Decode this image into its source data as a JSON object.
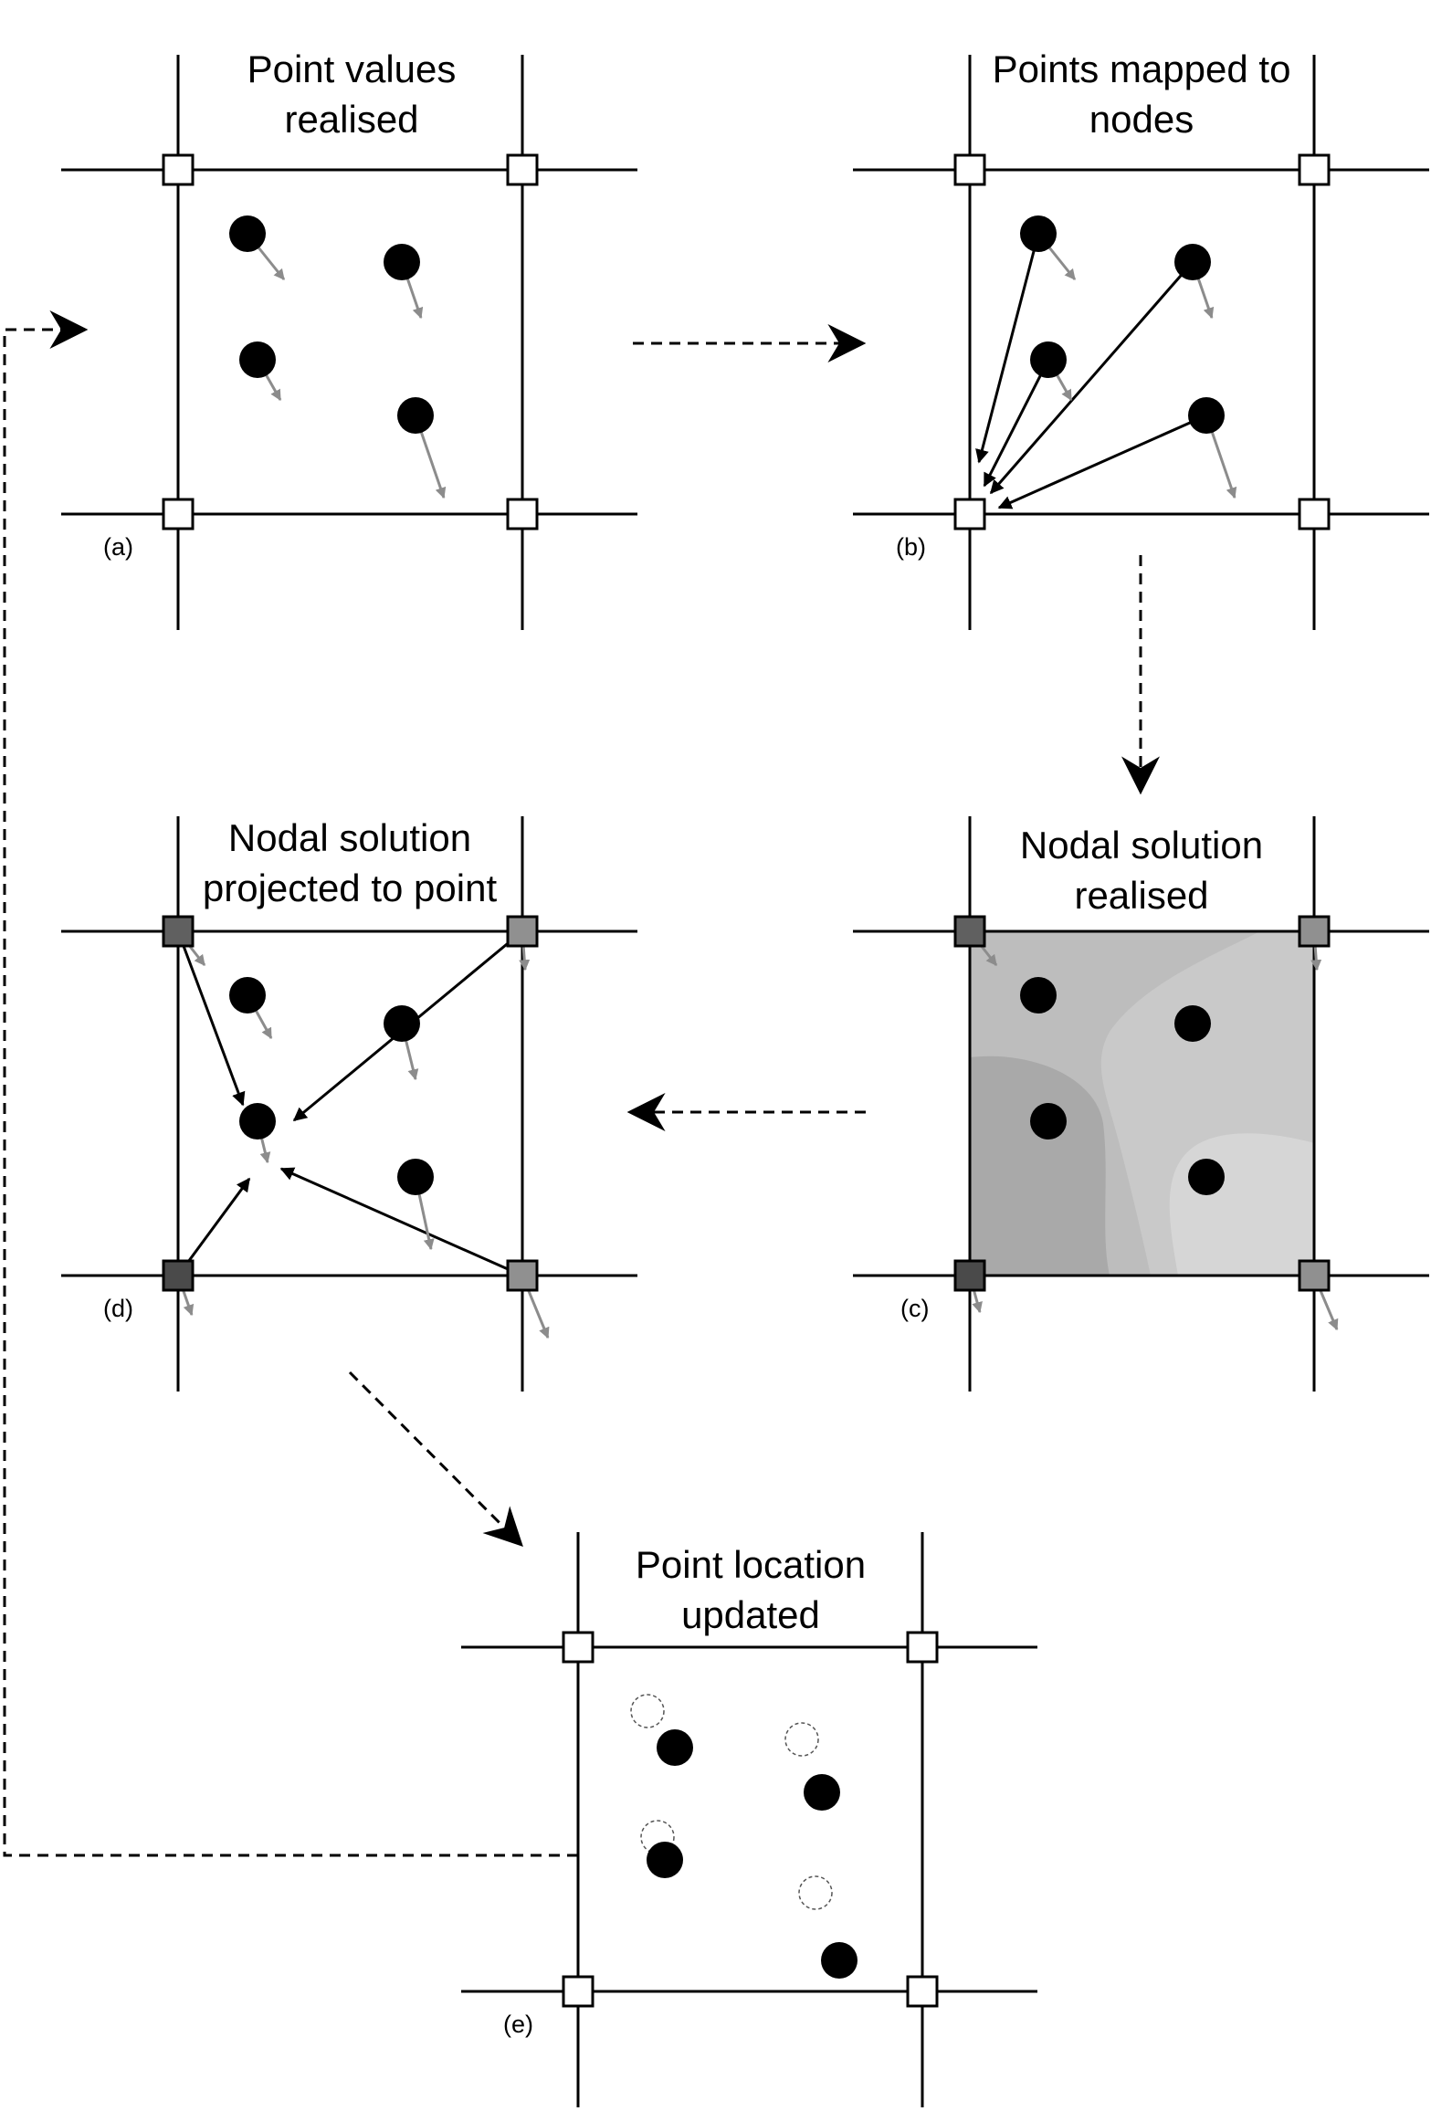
{
  "panels": [
    {
      "id": "a",
      "label": "(a)",
      "title": [
        "Point values",
        "realised"
      ]
    },
    {
      "id": "b",
      "label": "(b)",
      "title": [
        "Points mapped to",
        "nodes"
      ]
    },
    {
      "id": "c",
      "label": "(c)",
      "title": [
        "Nodal solution",
        "realised"
      ]
    },
    {
      "id": "d",
      "label": "(d)",
      "title": [
        "Nodal solution",
        "projected to point"
      ]
    },
    {
      "id": "e",
      "label": "(e)",
      "title": [
        "Point location",
        "updated"
      ]
    }
  ],
  "colors": {
    "grid": "#000000",
    "point": "#000000",
    "node_empty": "#ffffff",
    "node_dark": "#606060",
    "node_light": "#909090",
    "velocity_arrow": "#8c8c8c",
    "field_dark": "#a9a9a9",
    "field_mid": "#bdbdbd",
    "field_light": "#d3d3d3"
  }
}
